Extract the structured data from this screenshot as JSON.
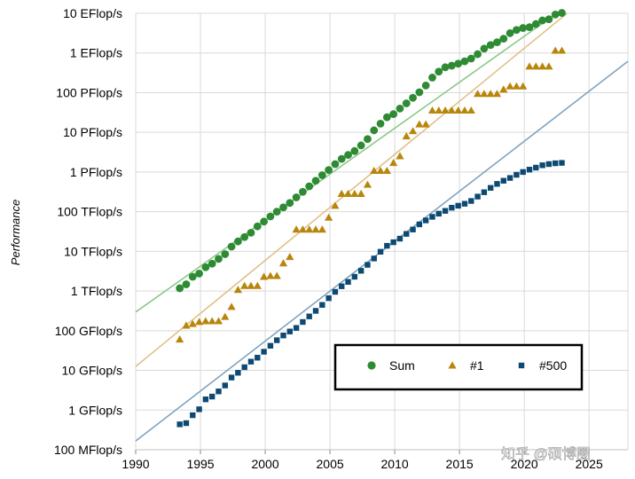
{
  "chart_data": {
    "type": "scatter",
    "ylabel": "Performance",
    "xlabel": "",
    "x_ticks": [
      "1990",
      "1995",
      "2000",
      "2005",
      "2010",
      "2015",
      "2020",
      "2025"
    ],
    "xlim": [
      1990,
      2028
    ],
    "y_scale": "log10 (Flop/s)",
    "ylim_exponent": [
      8,
      19
    ],
    "y_ticks": [
      "100 MFlop/s",
      "1 GFlop/s",
      "10 GFlop/s",
      "100 GFlop/s",
      "1 TFlop/s",
      "10 TFlop/s",
      "100 TFlop/s",
      "1 PFlop/s",
      "10 PFlop/s",
      "100 PFlop/s",
      "1 EFlop/s",
      "10 EFlop/s"
    ],
    "grid": true,
    "legend_position": "lower-right",
    "series": [
      {
        "name": "Sum",
        "marker": "circle",
        "color": "#2e8b34",
        "trend_color": "#8cc88a",
        "trend": {
          "x": [
            1990,
            2022.5
          ],
          "log10_y": [
            11.47,
            19.0
          ]
        },
        "x": [
          1993.4,
          1993.9,
          1994.4,
          1994.9,
          1995.4,
          1995.9,
          1996.4,
          1996.9,
          1997.4,
          1997.9,
          1998.4,
          1998.9,
          1999.4,
          1999.9,
          2000.4,
          2000.9,
          2001.4,
          2001.9,
          2002.4,
          2002.9,
          2003.4,
          2003.9,
          2004.4,
          2004.9,
          2005.4,
          2005.9,
          2006.4,
          2006.9,
          2007.4,
          2007.9,
          2008.4,
          2008.9,
          2009.4,
          2009.9,
          2010.4,
          2010.9,
          2011.4,
          2011.9,
          2012.4,
          2012.9,
          2013.4,
          2013.9,
          2014.4,
          2014.9,
          2015.4,
          2015.9,
          2016.4,
          2016.9,
          2017.4,
          2017.9,
          2018.4,
          2018.9,
          2019.4,
          2019.9,
          2020.4,
          2020.9,
          2021.4,
          2021.9,
          2022.4,
          2022.9
        ],
        "log10_y": [
          12.07,
          12.17,
          12.36,
          12.44,
          12.6,
          12.69,
          12.81,
          12.93,
          13.12,
          13.25,
          13.36,
          13.47,
          13.63,
          13.75,
          13.88,
          14.0,
          14.11,
          14.22,
          14.36,
          14.5,
          14.64,
          14.78,
          14.92,
          15.05,
          15.2,
          15.33,
          15.43,
          15.53,
          15.67,
          15.83,
          16.05,
          16.22,
          16.38,
          16.46,
          16.6,
          16.73,
          16.87,
          17.01,
          17.18,
          17.38,
          17.53,
          17.64,
          17.68,
          17.73,
          17.79,
          17.86,
          17.97,
          18.11,
          18.2,
          18.27,
          18.36,
          18.5,
          18.58,
          18.63,
          18.65,
          18.73,
          18.82,
          18.85,
          18.97,
          19.01
        ]
      },
      {
        "name": "#1",
        "marker": "triangle",
        "color": "#b8860b",
        "trend_color": "#e0c08a",
        "trend": {
          "x": [
            1990,
            2023.3
          ],
          "log10_y": [
            10.1,
            19.0
          ]
        },
        "x": [
          1993.4,
          1993.9,
          1994.4,
          1994.9,
          1995.4,
          1995.9,
          1996.4,
          1996.9,
          1997.4,
          1997.9,
          1998.4,
          1998.9,
          1999.4,
          1999.9,
          2000.4,
          2000.9,
          2001.4,
          2001.9,
          2002.4,
          2002.9,
          2003.4,
          2003.9,
          2004.4,
          2004.9,
          2005.4,
          2005.9,
          2006.4,
          2006.9,
          2007.4,
          2007.9,
          2008.4,
          2008.9,
          2009.4,
          2009.9,
          2010.4,
          2010.9,
          2011.4,
          2011.9,
          2012.4,
          2012.9,
          2013.4,
          2013.9,
          2014.4,
          2014.9,
          2015.4,
          2015.9,
          2016.4,
          2016.9,
          2017.4,
          2017.9,
          2018.4,
          2018.9,
          2019.4,
          2019.9,
          2020.4,
          2020.9,
          2021.4,
          2021.9,
          2022.4,
          2022.9
        ],
        "log10_y": [
          10.78,
          11.13,
          11.17,
          11.22,
          11.24,
          11.24,
          11.24,
          11.35,
          11.6,
          12.03,
          12.13,
          12.13,
          12.13,
          12.36,
          12.38,
          12.38,
          12.7,
          12.86,
          13.55,
          13.55,
          13.55,
          13.55,
          13.55,
          13.85,
          14.15,
          14.45,
          14.45,
          14.45,
          14.45,
          14.68,
          15.03,
          15.03,
          15.03,
          15.23,
          15.4,
          15.9,
          16.03,
          16.2,
          16.2,
          16.55,
          16.55,
          16.55,
          16.55,
          16.55,
          16.55,
          16.55,
          16.97,
          16.97,
          16.97,
          16.97,
          17.08,
          17.16,
          17.16,
          17.16,
          17.66,
          17.66,
          17.66,
          17.66,
          18.06,
          18.06
        ]
      },
      {
        "name": "#500",
        "marker": "square",
        "color": "#0d4a73",
        "trend_color": "#7fa3c0",
        "trend": {
          "x": [
            1990,
            2028
          ],
          "log10_y": [
            8.22,
            17.79
          ]
        },
        "x": [
          1993.4,
          1993.9,
          1994.4,
          1994.9,
          1995.4,
          1995.9,
          1996.4,
          1996.9,
          1997.4,
          1997.9,
          1998.4,
          1998.9,
          1999.4,
          1999.9,
          2000.4,
          2000.9,
          2001.4,
          2001.9,
          2002.4,
          2002.9,
          2003.4,
          2003.9,
          2004.4,
          2004.9,
          2005.4,
          2005.9,
          2006.4,
          2006.9,
          2007.4,
          2007.9,
          2008.4,
          2008.9,
          2009.4,
          2009.9,
          2010.4,
          2010.9,
          2011.4,
          2011.9,
          2012.4,
          2012.9,
          2013.4,
          2013.9,
          2014.4,
          2014.9,
          2015.4,
          2015.9,
          2016.4,
          2016.9,
          2017.4,
          2017.9,
          2018.4,
          2018.9,
          2019.4,
          2019.9,
          2020.4,
          2020.9,
          2021.4,
          2021.9,
          2022.4,
          2022.9
        ],
        "log10_y": [
          8.64,
          8.67,
          8.87,
          9.02,
          9.27,
          9.34,
          9.47,
          9.62,
          9.82,
          9.94,
          10.08,
          10.22,
          10.32,
          10.47,
          10.62,
          10.76,
          10.88,
          10.98,
          11.07,
          11.22,
          11.36,
          11.5,
          11.65,
          11.82,
          11.98,
          12.12,
          12.23,
          12.36,
          12.51,
          12.66,
          12.82,
          12.99,
          13.14,
          13.23,
          13.32,
          13.44,
          13.55,
          13.68,
          13.78,
          13.87,
          13.95,
          14.02,
          14.1,
          14.15,
          14.2,
          14.27,
          14.38,
          14.49,
          14.6,
          14.7,
          14.78,
          14.85,
          14.93,
          15.0,
          15.06,
          15.11,
          15.17,
          15.2,
          15.22,
          15.23
        ]
      }
    ]
  }
}
